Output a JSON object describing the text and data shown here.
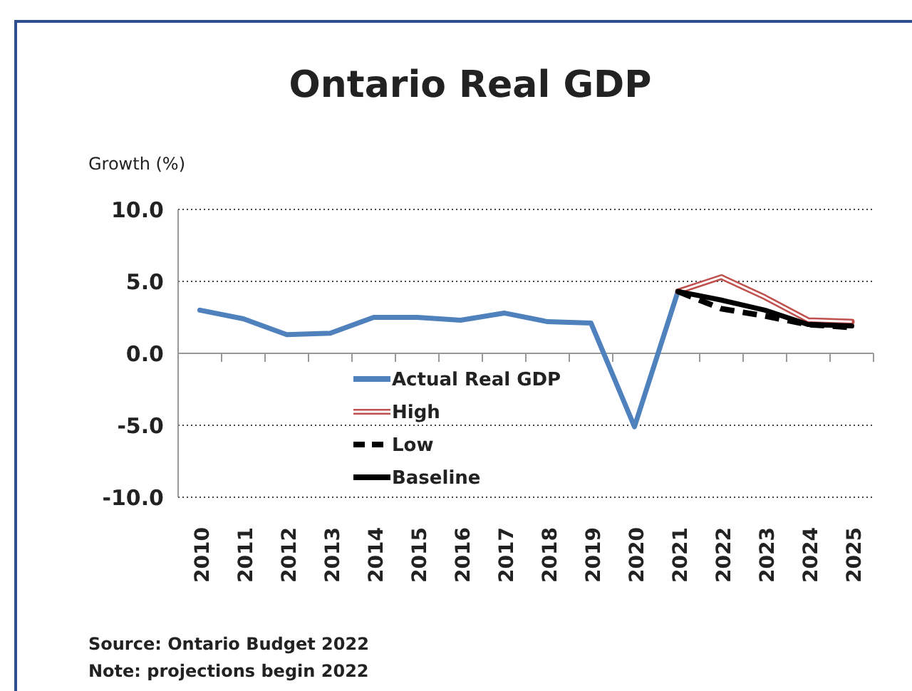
{
  "chart_data": {
    "type": "line",
    "title": "Ontario Real GDP",
    "ylabel": "Growth (%)",
    "categories": [
      "2010",
      "2011",
      "2012",
      "2013",
      "2014",
      "2015",
      "2016",
      "2017",
      "2018",
      "2019",
      "2020",
      "2021",
      "2022",
      "2023",
      "2024",
      "2025"
    ],
    "series": [
      {
        "name": "Actual Real GDP",
        "color": "#4f81bd",
        "values": [
          3.0,
          2.4,
          1.3,
          1.4,
          2.5,
          2.5,
          2.3,
          2.8,
          2.2,
          2.1,
          -5.1,
          4.3,
          null,
          null,
          null,
          null
        ]
      },
      {
        "name": "High",
        "color": "#c0504d",
        "values": [
          null,
          null,
          null,
          null,
          null,
          null,
          null,
          null,
          null,
          null,
          null,
          4.3,
          5.3,
          3.9,
          2.3,
          2.2
        ]
      },
      {
        "name": "Low",
        "color": "#000000",
        "line_style": "dashed",
        "values": [
          null,
          null,
          null,
          null,
          null,
          null,
          null,
          null,
          null,
          null,
          null,
          4.3,
          3.1,
          2.6,
          2.0,
          1.8
        ]
      },
      {
        "name": "Baseline",
        "color": "#000000",
        "values": [
          null,
          null,
          null,
          null,
          null,
          null,
          null,
          null,
          null,
          null,
          null,
          4.3,
          3.7,
          3.0,
          2.0,
          1.9
        ]
      }
    ],
    "ylim": [
      -10,
      10
    ],
    "yticks": [
      {
        "value": -10,
        "label": "-10.0"
      },
      {
        "value": -5,
        "label": "-5.0"
      },
      {
        "value": 0,
        "label": "0.0"
      },
      {
        "value": 5,
        "label": "5.0"
      },
      {
        "value": 10,
        "label": "10.0"
      }
    ],
    "grid": "y",
    "legend": "bottom",
    "marker": "none",
    "annotations": [
      "Source: Ontario Budget 2022",
      "Note: projections begin 2022"
    ]
  }
}
